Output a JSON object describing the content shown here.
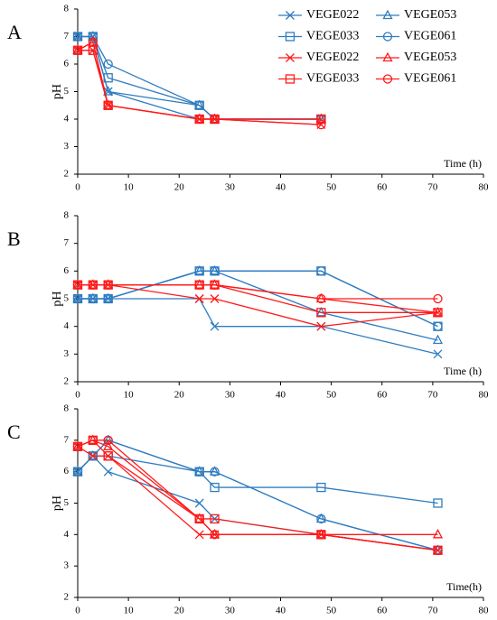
{
  "chart_data": [
    {
      "type": "line",
      "panel_label": "A",
      "y_label": "pH",
      "x_label": "Time (h)",
      "x": [
        0,
        3,
        6,
        24,
        27,
        48
      ],
      "xlim": [
        0,
        80
      ],
      "xticks": [
        0,
        10,
        20,
        30,
        40,
        50,
        60,
        70,
        80
      ],
      "ylim": [
        2,
        8
      ],
      "yticks": [
        2,
        3,
        4,
        5,
        6,
        7,
        8
      ],
      "legend": "upper right",
      "series": [
        {
          "name": "VEGE022",
          "color": "#2f7cc0",
          "marker": "x",
          "values": [
            7,
            7,
            5,
            4,
            4,
            4
          ]
        },
        {
          "name": "VEGE033",
          "color": "#2f7cc0",
          "marker": "square",
          "values": [
            7,
            7,
            5.5,
            4.5,
            4,
            4
          ]
        },
        {
          "name": "VEGE053",
          "color": "#2f7cc0",
          "marker": "triangle",
          "values": [
            7,
            7,
            5,
            4.5,
            4,
            4
          ]
        },
        {
          "name": "VEGE061",
          "color": "#2f7cc0",
          "marker": "circle",
          "values": [
            7,
            7,
            6,
            4.5,
            4,
            4
          ]
        },
        {
          "name": "VEGE022",
          "color": "#ff1a1a",
          "marker": "x",
          "values": [
            6.5,
            6.5,
            4.5,
            4,
            4,
            3.8
          ]
        },
        {
          "name": "VEGE033",
          "color": "#ff1a1a",
          "marker": "square",
          "values": [
            6.5,
            6.5,
            4.5,
            4,
            4,
            4
          ]
        },
        {
          "name": "VEGE053",
          "color": "#ff1a1a",
          "marker": "triangle",
          "values": [
            6.5,
            6.8,
            4.5,
            4,
            4,
            4
          ]
        },
        {
          "name": "VEGE061",
          "color": "#ff1a1a",
          "marker": "circle",
          "values": [
            6.5,
            6.8,
            4.5,
            4,
            4,
            3.8
          ]
        }
      ]
    },
    {
      "type": "line",
      "panel_label": "B",
      "y_label": "pH",
      "x_label": "Time (h)",
      "x": [
        0,
        3,
        6,
        24,
        27,
        48,
        71
      ],
      "xlim": [
        0,
        80
      ],
      "xticks": [
        0,
        10,
        20,
        30,
        40,
        50,
        60,
        70,
        80
      ],
      "ylim": [
        2,
        8
      ],
      "yticks": [
        2,
        3,
        4,
        5,
        6,
        7,
        8
      ],
      "series": [
        {
          "color": "#2f7cc0",
          "marker": "x",
          "values": [
            5,
            5,
            5,
            5,
            4,
            4,
            3
          ]
        },
        {
          "color": "#2f7cc0",
          "marker": "square",
          "values": [
            5,
            5,
            5,
            6,
            6,
            6,
            4
          ]
        },
        {
          "color": "#2f7cc0",
          "marker": "triangle",
          "values": [
            5,
            5,
            5,
            6,
            6,
            4.5,
            3.5
          ]
        },
        {
          "color": "#2f7cc0",
          "marker": "circle",
          "values": [
            5,
            5,
            5,
            6,
            6,
            6,
            4
          ]
        },
        {
          "color": "#ff1a1a",
          "marker": "x",
          "values": [
            5.5,
            5.5,
            5.5,
            5,
            5,
            4,
            4.5
          ]
        },
        {
          "color": "#ff1a1a",
          "marker": "square",
          "values": [
            5.5,
            5.5,
            5.5,
            5.5,
            5.5,
            4.5,
            4.5
          ]
        },
        {
          "color": "#ff1a1a",
          "marker": "triangle",
          "values": [
            5.5,
            5.5,
            5.5,
            5.5,
            5.5,
            5,
            4.5
          ]
        },
        {
          "color": "#ff1a1a",
          "marker": "circle",
          "values": [
            5.5,
            5.5,
            5.5,
            5.5,
            5.5,
            5,
            5
          ]
        }
      ]
    },
    {
      "type": "line",
      "panel_label": "C",
      "y_label": "pH",
      "x_label": "Time(h)",
      "x": [
        0,
        3,
        6,
        24,
        27,
        48,
        71
      ],
      "xlim": [
        0,
        80
      ],
      "xticks": [
        0,
        10,
        20,
        30,
        40,
        50,
        60,
        70,
        80
      ],
      "ylim": [
        2,
        8
      ],
      "yticks": [
        2,
        3,
        4,
        5,
        6,
        7,
        8
      ],
      "series": [
        {
          "color": "#2f7cc0",
          "marker": "x",
          "values": [
            6,
            6.5,
            6,
            5,
            4.5,
            4,
            3.5
          ]
        },
        {
          "color": "#2f7cc0",
          "marker": "square",
          "values": [
            6,
            6.5,
            6.5,
            6,
            5.5,
            5.5,
            5
          ]
        },
        {
          "color": "#2f7cc0",
          "marker": "triangle",
          "values": [
            6,
            6.5,
            7,
            6,
            6,
            4.5,
            3.5
          ]
        },
        {
          "color": "#2f7cc0",
          "marker": "circle",
          "values": [
            6,
            6.5,
            7,
            6,
            6,
            4.5,
            3.5
          ]
        },
        {
          "color": "#ff1a1a",
          "marker": "x",
          "values": [
            6.8,
            6.5,
            6.5,
            4,
            4,
            4,
            3.5
          ]
        },
        {
          "color": "#ff1a1a",
          "marker": "square",
          "values": [
            6.8,
            7,
            6.5,
            4.5,
            4.5,
            4,
            3.5
          ]
        },
        {
          "color": "#ff1a1a",
          "marker": "triangle",
          "values": [
            6.8,
            7,
            6.8,
            4.5,
            4,
            4,
            4
          ]
        },
        {
          "color": "#ff1a1a",
          "marker": "circle",
          "values": [
            6.8,
            7,
            7,
            4.5,
            4,
            4,
            3.5
          ]
        }
      ]
    }
  ]
}
